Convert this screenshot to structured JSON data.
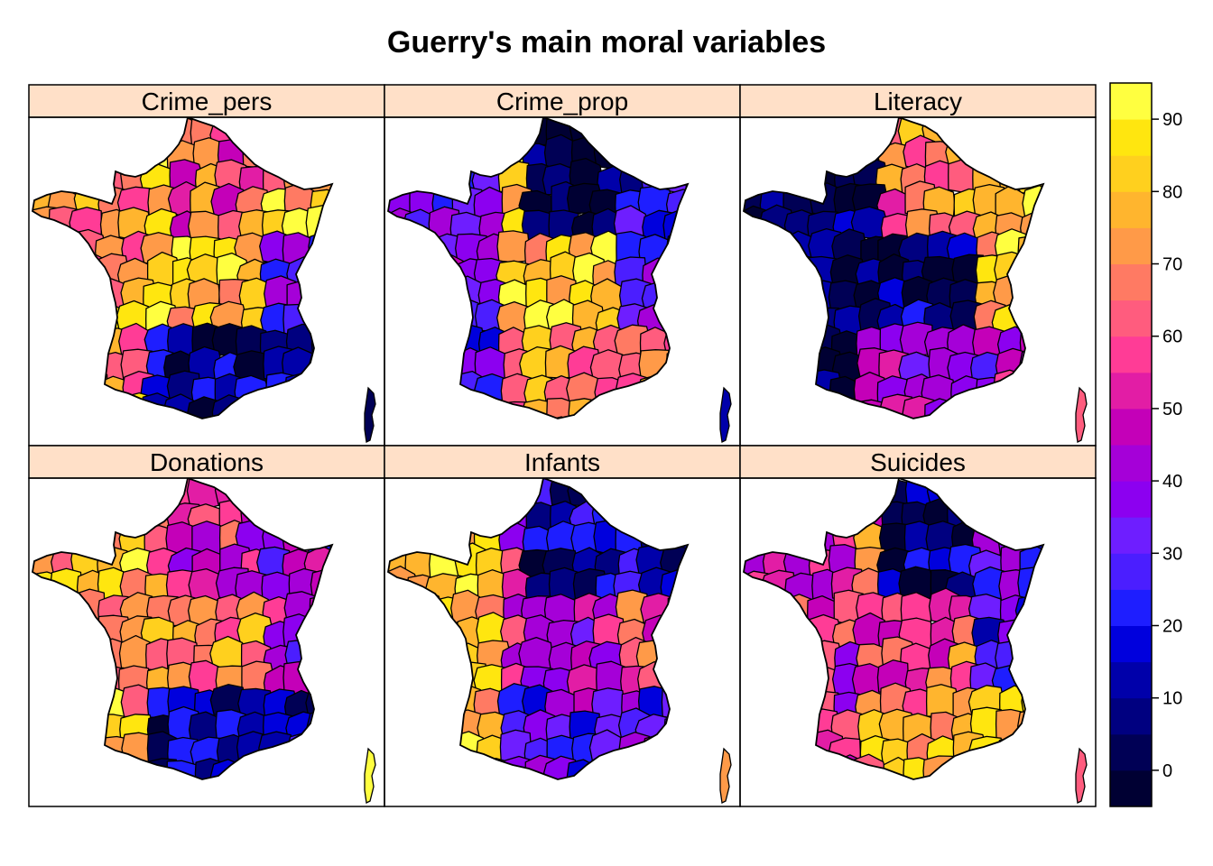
{
  "title": "Guerry's main moral variables",
  "panels": [
    {
      "name": "Crime_pers"
    },
    {
      "name": "Crime_prop"
    },
    {
      "name": "Literacy"
    },
    {
      "name": "Donations"
    },
    {
      "name": "Infants"
    },
    {
      "name": "Suicides"
    }
  ],
  "colorkey": {
    "min": -5,
    "max": 95,
    "ticks": [
      0,
      10,
      20,
      30,
      40,
      50,
      60,
      70,
      80,
      90
    ],
    "colors": [
      "#000033",
      "#000055",
      "#000080",
      "#0000AA",
      "#0000DD",
      "#1E1EFF",
      "#4B1EFF",
      "#6E1EFF",
      "#8C00F0",
      "#A500D8",
      "#C400B8",
      "#E21DA5",
      "#FF3C96",
      "#FF5C7E",
      "#FF7A63",
      "#FF9A48",
      "#FFB52E",
      "#FFD01E",
      "#FFE60F",
      "#FFFF40"
    ]
  },
  "strip_color": "#FFE0C8",
  "chart_data": {
    "type": "choropleth-map",
    "title": "Guerry's main moral variables",
    "panels": [
      "Crime_pers",
      "Crime_prop",
      "Literacy",
      "Donations",
      "Infants",
      "Suicides"
    ],
    "layout": "3 columns x 2 rows",
    "colorkey_range": [
      -5,
      95
    ],
    "colorkey_ticks": [
      0,
      10,
      20,
      30,
      40,
      50,
      60,
      70,
      80,
      90
    ],
    "colorkey_position": "right"
  }
}
